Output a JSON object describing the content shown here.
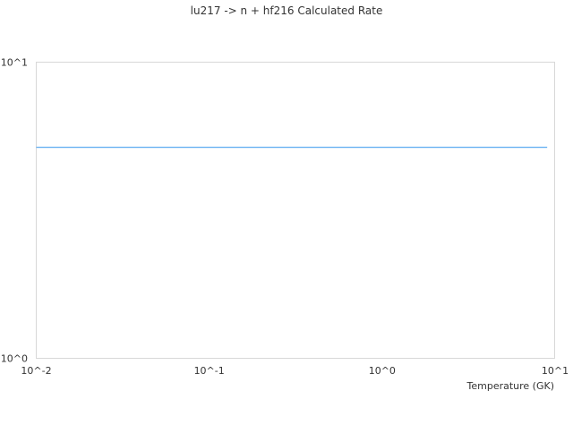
{
  "chart_data": {
    "type": "line",
    "title": "lu217 -> n + hf216 Calculated Rate",
    "xlabel": "Temperature (GK)",
    "ylabel": "",
    "xscale": "log",
    "yscale": "log",
    "xlim": [
      0.01,
      10
    ],
    "ylim": [
      1,
      10
    ],
    "xticks": [
      {
        "value": 0.01,
        "label": "10^-2"
      },
      {
        "value": 0.1,
        "label": "10^-1"
      },
      {
        "value": 1,
        "label": "10^0"
      },
      {
        "value": 10,
        "label": "10^1"
      }
    ],
    "yticks": [
      {
        "value": 1,
        "label": "10^0"
      },
      {
        "value": 10,
        "label": "10^1"
      }
    ],
    "grid": false,
    "series": [
      {
        "color": "#5aaaf0",
        "x": [
          0.01,
          9
        ],
        "y": [
          5.16,
          5.16
        ]
      }
    ]
  }
}
